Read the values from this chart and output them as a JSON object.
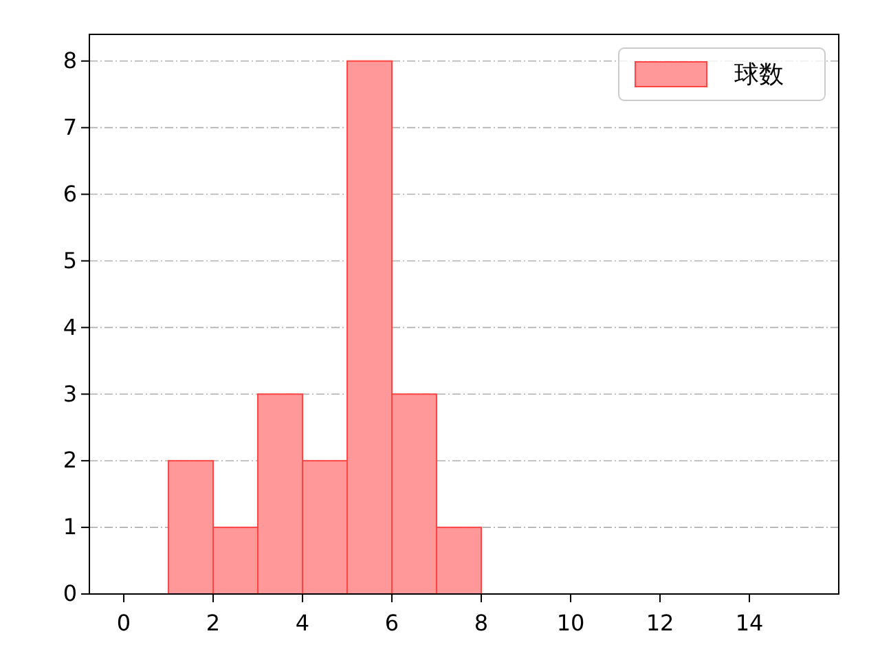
{
  "chart_data": {
    "type": "histogram",
    "bins": [
      1,
      2,
      3,
      4,
      5,
      6,
      7,
      8
    ],
    "series": [
      {
        "name": "球数",
        "color": "#ff9999",
        "values": [
          2,
          1,
          3,
          2,
          8,
          3,
          1
        ]
      }
    ],
    "xlim": [
      -0.77,
      16
    ],
    "xticks": [
      0,
      2,
      4,
      6,
      8,
      10,
      12,
      14
    ],
    "ylim": [
      0,
      8.4
    ],
    "yticks": [
      0,
      1,
      2,
      3,
      4,
      5,
      6,
      7,
      8
    ],
    "grid": "y",
    "legend": "top right"
  }
}
